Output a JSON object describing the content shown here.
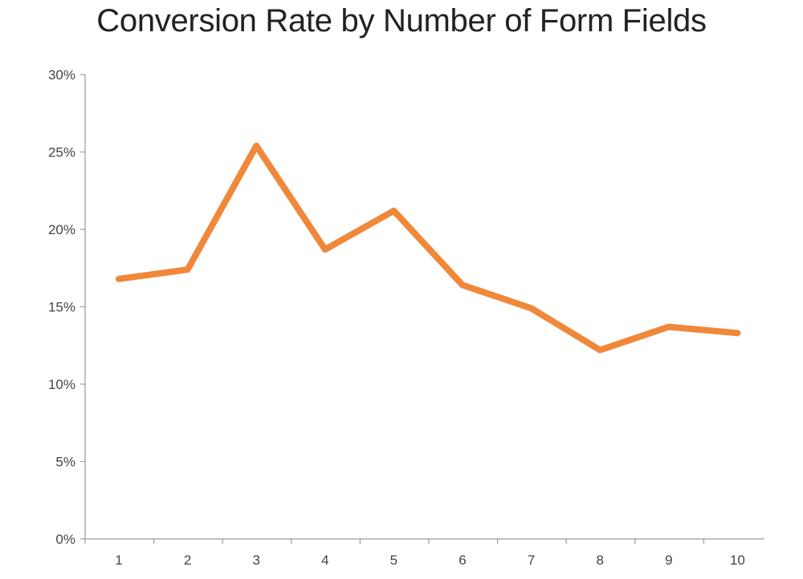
{
  "chart_data": {
    "type": "line",
    "title": "Conversion Rate by Number of Form Fields",
    "xlabel": "",
    "ylabel": "",
    "categories": [
      "1",
      "2",
      "3",
      "4",
      "5",
      "6",
      "7",
      "8",
      "9",
      "10"
    ],
    "series": [
      {
        "values": [
          16.8,
          17.4,
          25.4,
          18.7,
          21.2,
          16.4,
          14.9,
          12.2,
          13.7,
          13.3
        ],
        "color": "#f0883a"
      }
    ],
    "ylim": [
      0,
      30
    ],
    "yticks": [
      0,
      5,
      10,
      15,
      20,
      25,
      30
    ],
    "ytick_labels": [
      "0%",
      "5%",
      "10%",
      "15%",
      "20%",
      "25%",
      "30%"
    ],
    "grid": false,
    "legend": "none"
  }
}
